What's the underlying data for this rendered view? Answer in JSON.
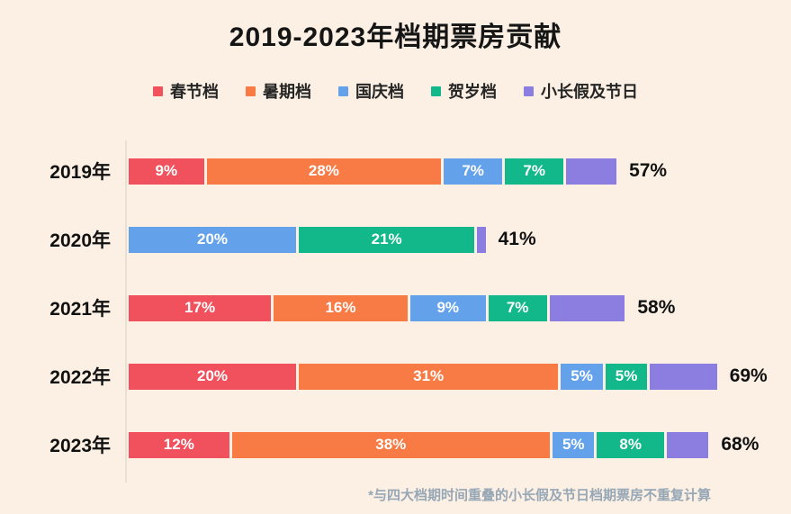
{
  "title": "2019-2023年档期票房贡献",
  "footnote": "*与四大档期时间重叠的小长假及节日档期票房不重复计算",
  "colors": {
    "background": "#FBF0E3",
    "axis_line": "#E7E0D3",
    "text_primary": "#111111",
    "segment_label": "#FFFFFF",
    "footnote_text": "#97A7B6"
  },
  "chart_data": {
    "type": "bar",
    "orientation": "horizontal",
    "stacked": true,
    "title": "2019-2023年档期票房贡献",
    "unit": "%",
    "legend_position": "top",
    "series": [
      {
        "name": "春节档",
        "color": "#F0515C"
      },
      {
        "name": "暑期档",
        "color": "#F87A45"
      },
      {
        "name": "国庆档",
        "color": "#63A1EB"
      },
      {
        "name": "贺岁档",
        "color": "#12B78A"
      },
      {
        "name": "小长假及节日",
        "color": "#8C7EE0"
      }
    ],
    "rows": [
      {
        "category": "2019年",
        "total_label": "57%",
        "segments": [
          {
            "series": "春节档",
            "value": 9,
            "label": "9%"
          },
          {
            "series": "暑期档",
            "value": 28,
            "label": "28%"
          },
          {
            "series": "国庆档",
            "value": 7,
            "label": "7%"
          },
          {
            "series": "贺岁档",
            "value": 7,
            "label": "7%"
          },
          {
            "series": "小长假及节日",
            "value": 6,
            "label": ""
          }
        ]
      },
      {
        "category": "2020年",
        "total_label": "41%",
        "segments": [
          {
            "series": "国庆档",
            "value": 20,
            "label": "20%"
          },
          {
            "series": "贺岁档",
            "value": 21,
            "label": "21%"
          },
          {
            "series": "小长假及节日",
            "value": 1,
            "label": ""
          }
        ]
      },
      {
        "category": "2021年",
        "total_label": "58%",
        "segments": [
          {
            "series": "春节档",
            "value": 17,
            "label": "17%"
          },
          {
            "series": "暑期档",
            "value": 16,
            "label": "16%"
          },
          {
            "series": "国庆档",
            "value": 9,
            "label": "9%"
          },
          {
            "series": "贺岁档",
            "value": 7,
            "label": "7%"
          },
          {
            "series": "小长假及节日",
            "value": 9,
            "label": ""
          }
        ]
      },
      {
        "category": "2022年",
        "total_label": "69%",
        "segments": [
          {
            "series": "春节档",
            "value": 20,
            "label": "20%"
          },
          {
            "series": "暑期档",
            "value": 31,
            "label": "31%"
          },
          {
            "series": "国庆档",
            "value": 5,
            "label": "5%"
          },
          {
            "series": "贺岁档",
            "value": 5,
            "label": "5%"
          },
          {
            "series": "小长假及节日",
            "value": 8,
            "label": ""
          }
        ]
      },
      {
        "category": "2023年",
        "total_label": "68%",
        "segments": [
          {
            "series": "春节档",
            "value": 12,
            "label": "12%"
          },
          {
            "series": "暑期档",
            "value": 38,
            "label": "38%"
          },
          {
            "series": "国庆档",
            "value": 5,
            "label": "5%"
          },
          {
            "series": "贺岁档",
            "value": 8,
            "label": "8%"
          },
          {
            "series": "小长假及节日",
            "value": 5,
            "label": ""
          }
        ]
      }
    ]
  }
}
